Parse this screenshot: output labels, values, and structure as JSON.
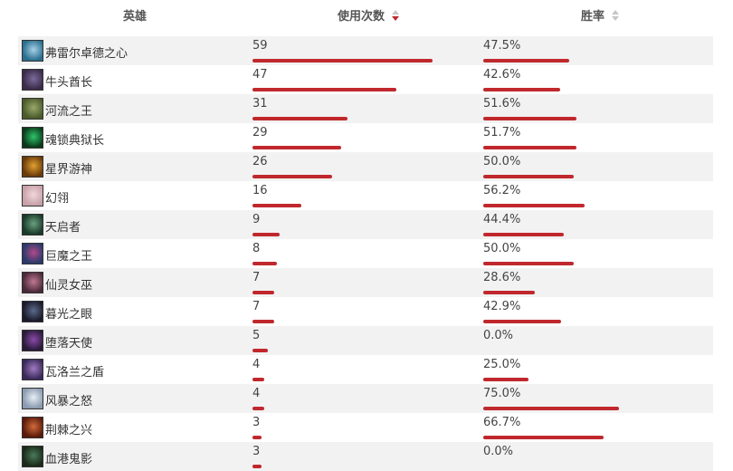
{
  "header": {
    "hero_label": "英雄",
    "uses_label": "使用次数",
    "winrate_label": "胜率",
    "uses_sort": "descending",
    "winrate_sort": "none"
  },
  "bar_color": "#c0282d",
  "rows": [
    {
      "hero": "弗雷尔卓德之心",
      "uses": "59",
      "uses_num": 59,
      "winrate": "47.5%",
      "winrate_num": 47.5,
      "avatar_colors": [
        "#2a6f8f",
        "#a8d0e6"
      ],
      "avatar_icon": "hero-portrait-icon"
    },
    {
      "hero": "牛头酋长",
      "uses": "47",
      "uses_num": 47,
      "winrate": "42.6%",
      "winrate_num": 42.6,
      "avatar_colors": [
        "#3a2b4a",
        "#7a6a9a"
      ],
      "avatar_icon": "hero-portrait-icon"
    },
    {
      "hero": "河流之王",
      "uses": "31",
      "uses_num": 31,
      "winrate": "51.6%",
      "winrate_num": 51.6,
      "avatar_colors": [
        "#4a5a2a",
        "#9aa86a"
      ],
      "avatar_icon": "hero-portrait-icon"
    },
    {
      "hero": "魂锁典狱长",
      "uses": "29",
      "uses_num": 29,
      "winrate": "51.7%",
      "winrate_num": 51.7,
      "avatar_colors": [
        "#0a3a1a",
        "#2ec46a"
      ],
      "avatar_icon": "hero-portrait-icon"
    },
    {
      "hero": "星界游神",
      "uses": "26",
      "uses_num": 26,
      "winrate": "50.0%",
      "winrate_num": 50.0,
      "avatar_colors": [
        "#6a3a0a",
        "#e0a030"
      ],
      "avatar_icon": "hero-portrait-icon"
    },
    {
      "hero": "幻翎",
      "uses": "16",
      "uses_num": 16,
      "winrate": "56.2%",
      "winrate_num": 56.2,
      "avatar_colors": [
        "#c8a0a8",
        "#f0d8dc"
      ],
      "avatar_icon": "hero-portrait-icon"
    },
    {
      "hero": "天启者",
      "uses": "9",
      "uses_num": 9,
      "winrate": "44.4%",
      "winrate_num": 44.4,
      "avatar_colors": [
        "#1a3a2a",
        "#6aa080"
      ],
      "avatar_icon": "hero-portrait-icon"
    },
    {
      "hero": "巨魔之王",
      "uses": "8",
      "uses_num": 8,
      "winrate": "50.0%",
      "winrate_num": 50.0,
      "avatar_colors": [
        "#2a3a6a",
        "#b04a8a"
      ],
      "avatar_icon": "hero-portrait-icon"
    },
    {
      "hero": "仙灵女巫",
      "uses": "7",
      "uses_num": 7,
      "winrate": "28.6%",
      "winrate_num": 28.6,
      "avatar_colors": [
        "#4a2a3a",
        "#c07890"
      ],
      "avatar_icon": "hero-portrait-icon"
    },
    {
      "hero": "暮光之眼",
      "uses": "7",
      "uses_num": 7,
      "winrate": "42.9%",
      "winrate_num": 42.9,
      "avatar_colors": [
        "#1a1a2a",
        "#5a6a8a"
      ],
      "avatar_icon": "hero-portrait-icon"
    },
    {
      "hero": "堕落天使",
      "uses": "5",
      "uses_num": 5,
      "winrate": "0.0%",
      "winrate_num": 0.0,
      "avatar_colors": [
        "#2a1a3a",
        "#8a4aaa"
      ],
      "avatar_icon": "hero-portrait-icon"
    },
    {
      "hero": "瓦洛兰之盾",
      "uses": "4",
      "uses_num": 4,
      "winrate": "25.0%",
      "winrate_num": 25.0,
      "avatar_colors": [
        "#3a2a5a",
        "#a07ac0"
      ],
      "avatar_icon": "hero-portrait-icon"
    },
    {
      "hero": "风暴之怒",
      "uses": "4",
      "uses_num": 4,
      "winrate": "75.0%",
      "winrate_num": 75.0,
      "avatar_colors": [
        "#8a9ab0",
        "#e8eef5"
      ],
      "avatar_icon": "hero-portrait-icon"
    },
    {
      "hero": "荆棘之兴",
      "uses": "3",
      "uses_num": 3,
      "winrate": "66.7%",
      "winrate_num": 66.7,
      "avatar_colors": [
        "#5a1a0a",
        "#d06a3a"
      ],
      "avatar_icon": "hero-portrait-icon"
    },
    {
      "hero": "血港鬼影",
      "uses": "3",
      "uses_num": 3,
      "winrate": "0.0%",
      "winrate_num": 0.0,
      "avatar_colors": [
        "#1a2a1a",
        "#4a7a5a"
      ],
      "avatar_icon": "hero-portrait-icon"
    }
  ]
}
